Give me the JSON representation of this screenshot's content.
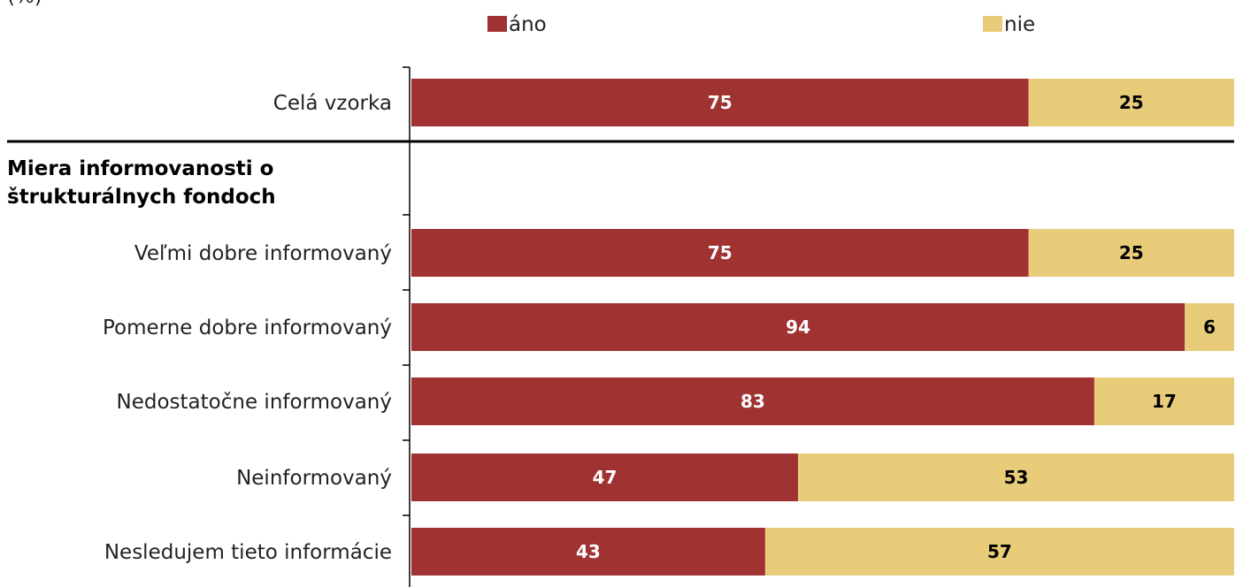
{
  "unit_label": "(%)",
  "chart_data": {
    "type": "bar",
    "orientation": "horizontal",
    "stacked": true,
    "title": "",
    "xlabel": "",
    "ylabel": "",
    "xlim": [
      0,
      100
    ],
    "legend_position": "top",
    "categories": [
      "Celá vzorka",
      "Veľmi dobre informovaný",
      "Pomerne dobre informovaný",
      "Nedostatočne informovaný",
      "Neinformovaný",
      "Nesledujem tieto informácie"
    ],
    "group_heading": "Miera informovanosti o štrukturálnych fondoch",
    "group_heading_lines": [
      "Miera informovanosti o",
      "štrukturálnych fondoch"
    ],
    "series": [
      {
        "name": "áno",
        "color": "#A03232",
        "values": [
          75,
          75,
          94,
          83,
          47,
          43
        ]
      },
      {
        "name": "nie",
        "color": "#E8CC7A",
        "values": [
          25,
          25,
          6,
          17,
          53,
          57
        ]
      }
    ]
  }
}
